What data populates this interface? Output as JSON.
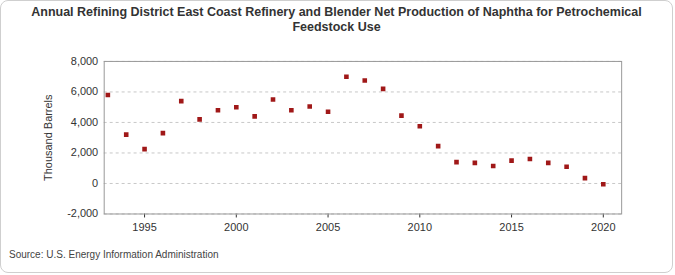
{
  "chart_data": {
    "type": "scatter",
    "title": "Annual Refining District East Coast Refinery and Blender Net Production of Naphtha for Petrochemical Feedstock Use",
    "y_label": "Thousand Barrels",
    "source": "Source: U.S. Energy Information Administration",
    "x": [
      1993,
      1994,
      1995,
      1996,
      1997,
      1998,
      1999,
      2000,
      2001,
      2002,
      2003,
      2004,
      2005,
      2006,
      2007,
      2008,
      2009,
      2010,
      2011,
      2012,
      2013,
      2014,
      2015,
      2016,
      2017,
      2018,
      2019,
      2020
    ],
    "values": [
      5800,
      3200,
      2250,
      3300,
      5400,
      4200,
      4800,
      5000,
      4400,
      5500,
      4800,
      5050,
      4700,
      7000,
      6750,
      6200,
      4450,
      3750,
      2450,
      1400,
      1350,
      1150,
      1500,
      1600,
      1350,
      1100,
      350,
      -50
    ],
    "color": "#a01818",
    "marker": "square",
    "xlim": [
      1992.8,
      2021
    ],
    "xticks": [
      1995,
      2000,
      2005,
      2010,
      2015,
      2020
    ],
    "ylim": [
      -2000,
      8000
    ],
    "yticks": [
      {
        "value": -2000,
        "label": "-2,000"
      },
      0,
      {
        "value": 2000,
        "label": "2,000"
      },
      {
        "value": 4000,
        "label": "4,000"
      },
      {
        "value": 6000,
        "label": "6,000"
      },
      {
        "value": 8000,
        "label": "8,000"
      }
    ],
    "grid": true
  }
}
